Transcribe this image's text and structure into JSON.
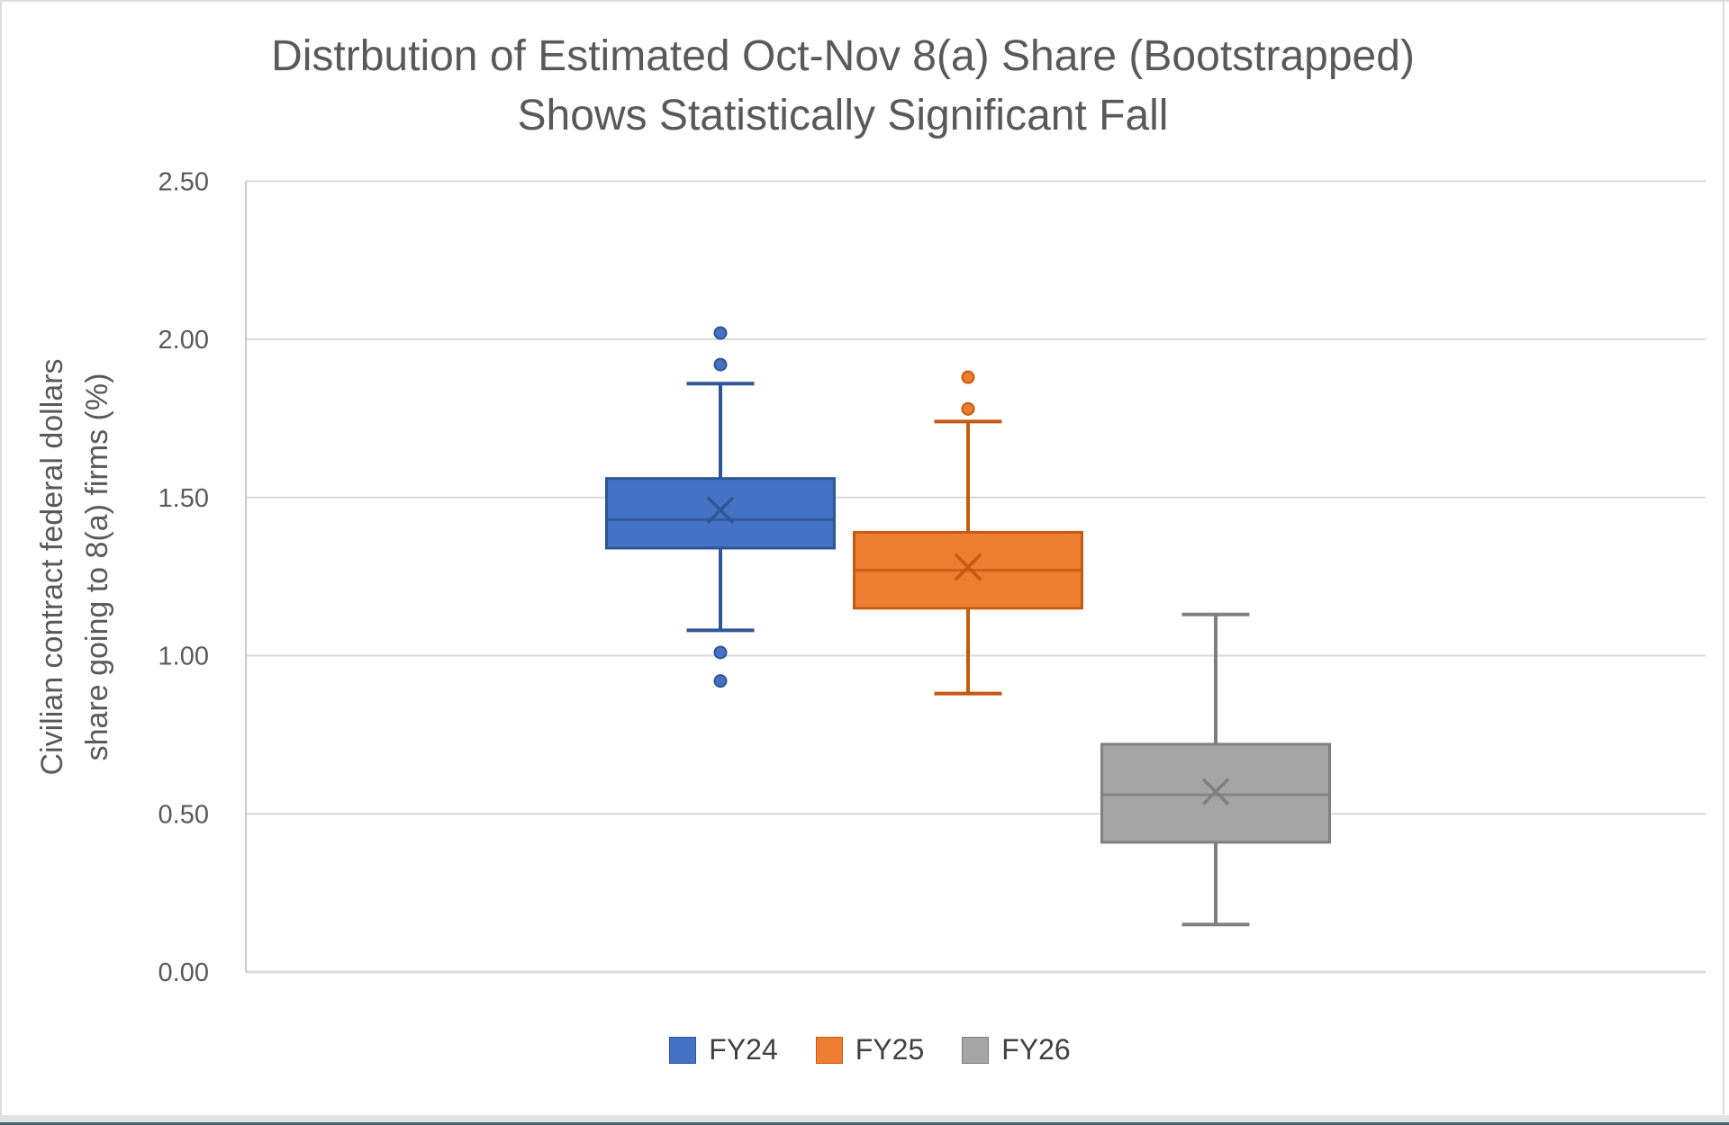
{
  "chart_data": {
    "type": "boxplot",
    "title_lines": [
      "Distrbution of Estimated Oct-Nov 8(a) Share (Bootstrapped)",
      "Shows Statistically Significant Fall"
    ],
    "ylabel_lines": [
      "Civilian contract federal dollars",
      "share going to 8(a) firms (%)"
    ],
    "ylim": [
      0,
      2.5
    ],
    "y_tick_labels": [
      "0.00",
      "0.50",
      "1.00",
      "1.50",
      "2.00",
      "2.50"
    ],
    "grid": true,
    "legend_position": "bottom",
    "colors": {
      "grid": "#D9D9D9",
      "axis": "#C9C9C9",
      "text": "#595959",
      "legend_text": "#404040"
    },
    "series": [
      {
        "name": "FY24",
        "fill": "#4472C4",
        "stroke": "#2F5597",
        "whisker_low": 1.08,
        "q1": 1.34,
        "median": 1.43,
        "mean": 1.46,
        "q3": 1.56,
        "whisker_high": 1.86,
        "outliers_high": [
          2.02,
          1.92
        ],
        "outliers_low": [
          1.01,
          0.92
        ]
      },
      {
        "name": "FY25",
        "fill": "#ED7D31",
        "stroke": "#C55A11",
        "whisker_low": 0.88,
        "q1": 1.15,
        "median": 1.27,
        "mean": 1.28,
        "q3": 1.39,
        "whisker_high": 1.74,
        "outliers_high": [
          1.88,
          1.78
        ],
        "outliers_low": []
      },
      {
        "name": "FY26",
        "fill": "#A5A5A5",
        "stroke": "#7F7F7F",
        "whisker_low": 0.15,
        "q1": 0.41,
        "median": 0.56,
        "mean": 0.57,
        "q3": 0.72,
        "whisker_high": 1.13,
        "outliers_high": [],
        "outliers_low": []
      }
    ]
  }
}
